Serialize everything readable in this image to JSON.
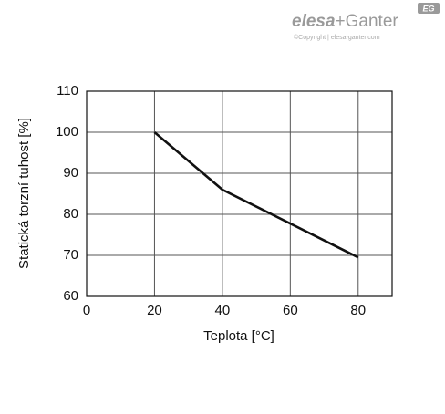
{
  "chart_data": {
    "type": "line",
    "x_label": "Teplota [°C]",
    "y_label": "Statická torzní tuhost [%]",
    "x": [
      20,
      40,
      80
    ],
    "series": [
      {
        "color": "#111111",
        "values": [
          100,
          86,
          69.5
        ]
      }
    ],
    "xlim": [
      0,
      90
    ],
    "xticks": [
      0,
      20,
      40,
      60,
      80
    ],
    "ylim": [
      60,
      110
    ],
    "yticks": [
      60,
      70,
      80,
      90,
      100,
      110
    ],
    "grid": true
  },
  "logo": {
    "brand_left": "elesa",
    "brand_right": "+Ganter",
    "copyright": "©Copyright | elesa-ganter.com",
    "badge": "EG"
  }
}
